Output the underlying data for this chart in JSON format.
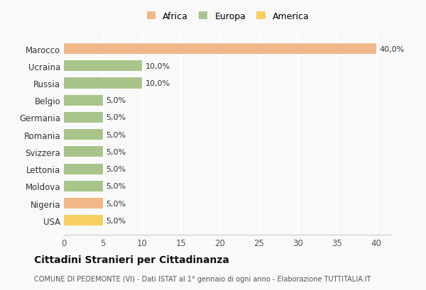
{
  "countries": [
    "USA",
    "Nigeria",
    "Moldova",
    "Lettonia",
    "Svizzera",
    "Romania",
    "Germania",
    "Belgio",
    "Russia",
    "Ucraina",
    "Marocco"
  ],
  "values": [
    5.0,
    5.0,
    5.0,
    5.0,
    5.0,
    5.0,
    5.0,
    5.0,
    10.0,
    10.0,
    40.0
  ],
  "colors": [
    "#f5d060",
    "#f0b888",
    "#a8c48a",
    "#a8c48a",
    "#a8c48a",
    "#a8c48a",
    "#a8c48a",
    "#a8c48a",
    "#a8c48a",
    "#a8c48a",
    "#f0b888"
  ],
  "legend_labels": [
    "Africa",
    "Europa",
    "America"
  ],
  "legend_colors": [
    "#f0b888",
    "#a8c48a",
    "#f5d060"
  ],
  "title": "Cittadini Stranieri per Cittadinanza",
  "subtitle": "COMUNE DI PEDEMONTE (VI) - Dati ISTAT al 1° gennaio di ogni anno - Elaborazione TUTTITALIA.IT",
  "xlim": [
    0,
    42
  ],
  "xticks": [
    0,
    5,
    10,
    15,
    20,
    25,
    30,
    35,
    40
  ],
  "bg_color": "#f9f9f9",
  "grid_color": "#ffffff",
  "bar_height": 0.62
}
